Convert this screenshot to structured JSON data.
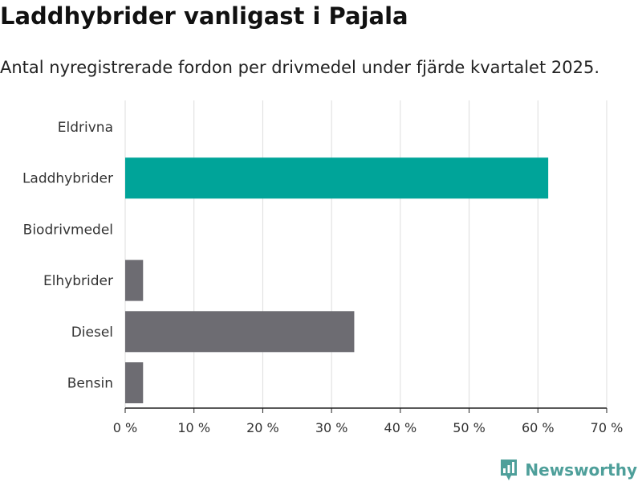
{
  "header": {
    "title": "Laddhybrider vanligast i Pajala",
    "subtitle": "Antal nyregistrerade fordon per drivmedel under fjärde kvartalet 2025."
  },
  "brand": {
    "name": "Newsworthy",
    "icon": "newsworthy-logo-icon",
    "color": "#4e9f9a"
  },
  "colors": {
    "highlight": "#00a499",
    "default": "#6d6c72",
    "grid": "#dddddd",
    "axis": "#222222"
  },
  "chart_data": {
    "type": "bar",
    "orientation": "horizontal",
    "title": "Laddhybrider vanligast i Pajala",
    "subtitle": "Antal nyregistrerade fordon per drivmedel under fjärde kvartalet 2025.",
    "categories": [
      "Eldrivna",
      "Laddhybrider",
      "Biodrivmedel",
      "Elhybrider",
      "Diesel",
      "Bensin"
    ],
    "values": [
      0,
      61.5,
      0,
      2.6,
      33.3,
      2.6
    ],
    "highlight": [
      "Laddhybrider"
    ],
    "unit": "%",
    "xlim": [
      0,
      70
    ],
    "xticks": [
      0,
      10,
      20,
      30,
      40,
      50,
      60,
      70
    ],
    "xtick_labels": [
      "0 %",
      "10 %",
      "20 %",
      "30 %",
      "40 %",
      "50 %",
      "60 %",
      "70 %"
    ],
    "grid": "vertical"
  }
}
